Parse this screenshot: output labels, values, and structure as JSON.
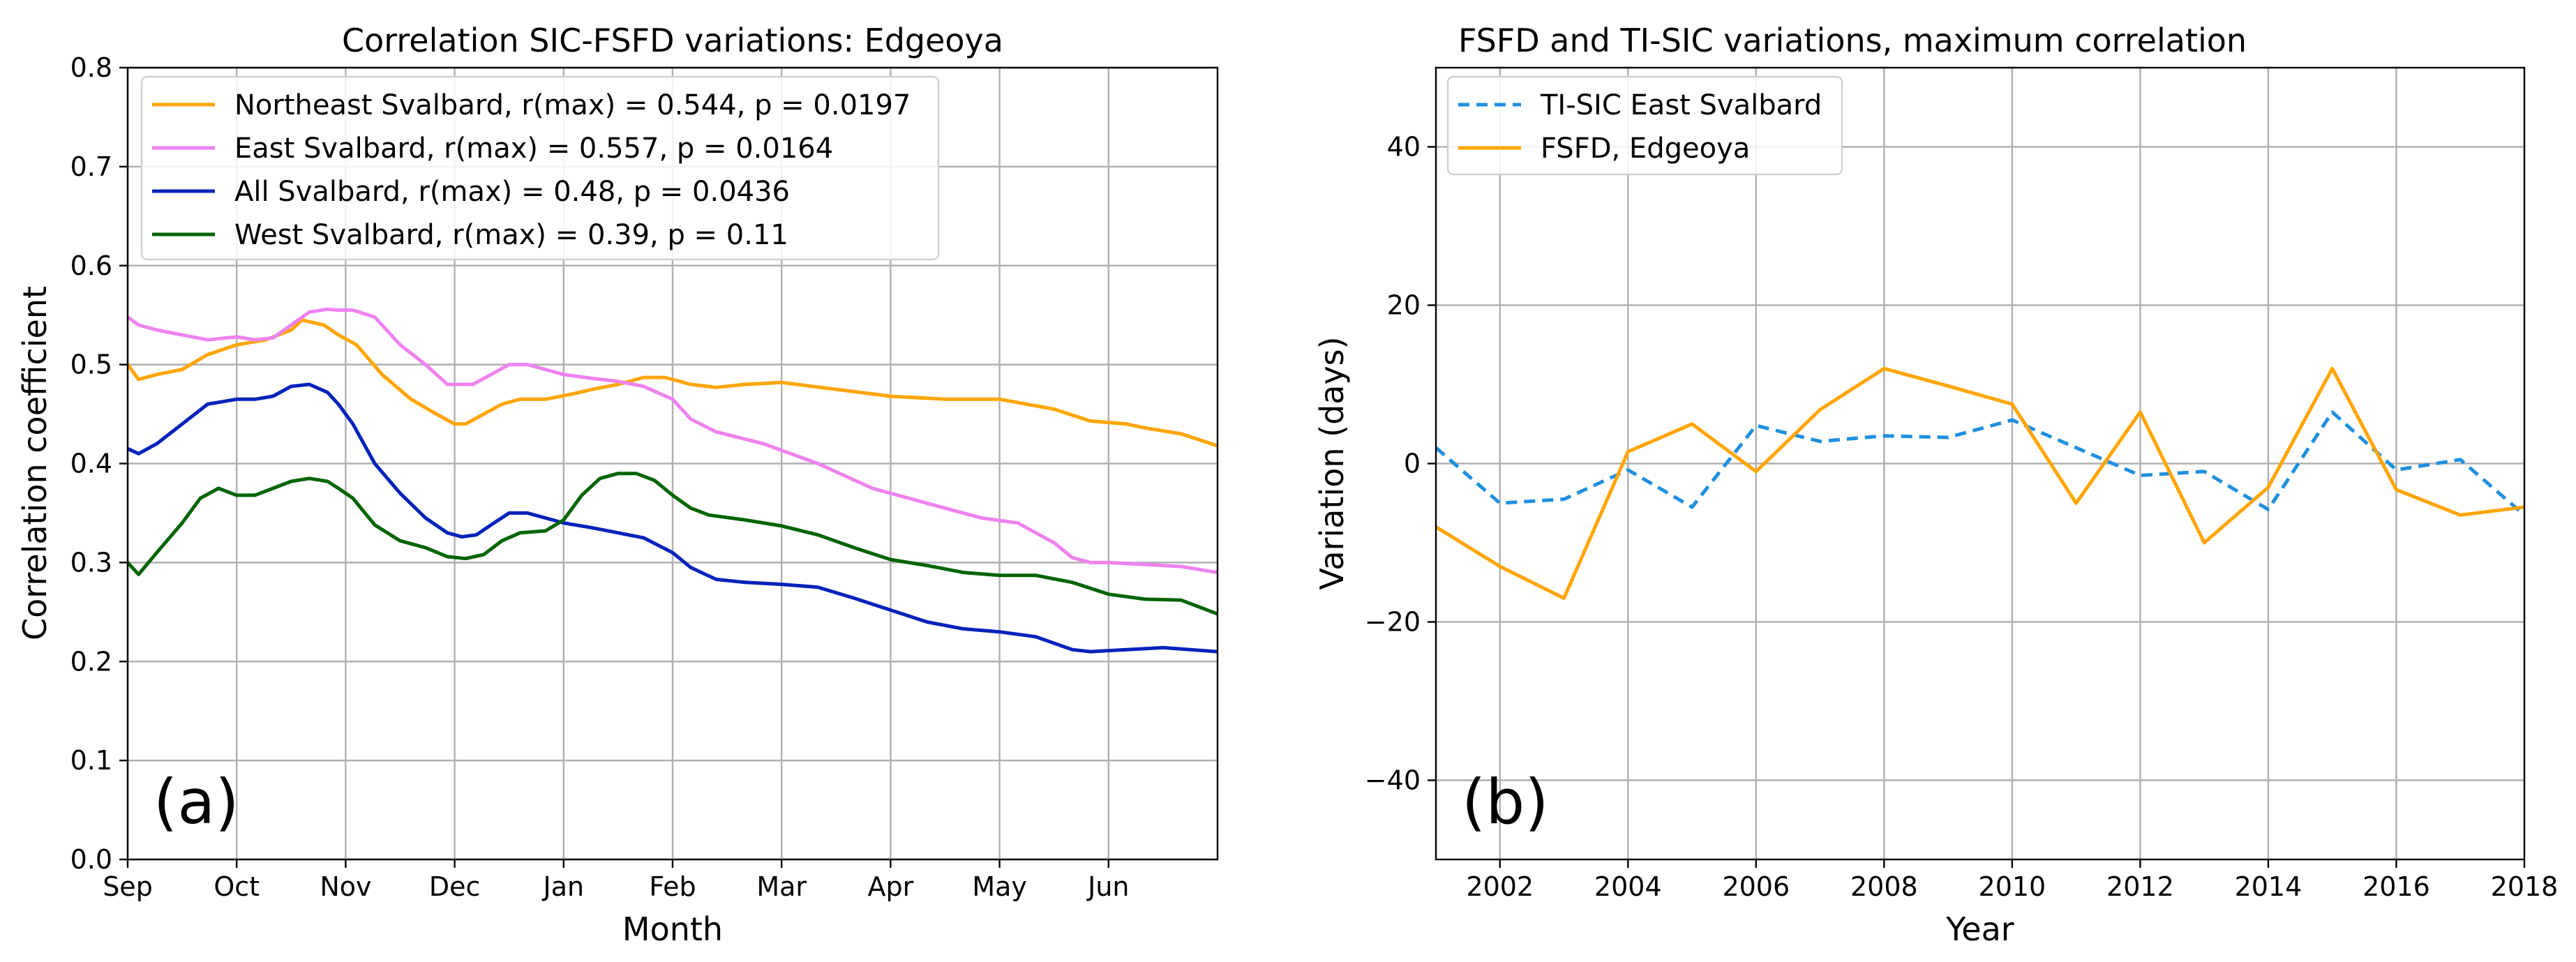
{
  "chart_data": [
    {
      "type": "line",
      "title": "Correlation SIC-FSFD variations: Edgeoya",
      "xlabel": "Month",
      "ylabel": "Correlation coefficient",
      "panel_label": "(a)",
      "ylim": [
        0.0,
        0.8
      ],
      "xlim": [
        0,
        300
      ],
      "yticks": [
        0.0,
        0.1,
        0.2,
        0.3,
        0.4,
        0.5,
        0.6,
        0.7,
        0.8
      ],
      "ytick_labels": [
        "0.0",
        "0.1",
        "0.2",
        "0.3",
        "0.4",
        "0.5",
        "0.6",
        "0.7",
        "0.8"
      ],
      "xticks": [
        0,
        30,
        60,
        90,
        120,
        150,
        180,
        210,
        240,
        270
      ],
      "xtick_labels": [
        "Sep",
        "Oct",
        "Nov",
        "Dec",
        "Jan",
        "Feb",
        "Mar",
        "Apr",
        "May",
        "Jun"
      ],
      "grid": true,
      "legend_position": "top-left",
      "series": [
        {
          "name": "Northeast Svalbard, r(max) = 0.544, p = 0.0197",
          "color": "#FFA500",
          "style": "solid",
          "x": [
            0,
            3,
            8,
            15,
            22,
            30,
            38,
            45,
            48,
            54,
            58,
            63,
            70,
            78,
            85,
            90,
            93,
            98,
            103,
            108,
            115,
            122,
            128,
            135,
            142,
            148,
            155,
            162,
            170,
            180,
            195,
            210,
            225,
            240,
            255,
            265,
            275,
            280,
            290,
            300
          ],
          "values": [
            0.5,
            0.485,
            0.49,
            0.495,
            0.51,
            0.52,
            0.525,
            0.535,
            0.545,
            0.54,
            0.53,
            0.52,
            0.49,
            0.465,
            0.45,
            0.44,
            0.44,
            0.45,
            0.46,
            0.465,
            0.465,
            0.47,
            0.475,
            0.48,
            0.487,
            0.487,
            0.48,
            0.477,
            0.48,
            0.482,
            0.475,
            0.468,
            0.465,
            0.465,
            0.455,
            0.443,
            0.44,
            0.436,
            0.43,
            0.418
          ]
        },
        {
          "name": "East Svalbard, r(max) = 0.557, p = 0.0164",
          "color": "#EE82EE",
          "style": "solid",
          "x": [
            0,
            3,
            8,
            15,
            22,
            30,
            35,
            40,
            45,
            50,
            55,
            58,
            62,
            68,
            75,
            82,
            88,
            95,
            100,
            105,
            110,
            115,
            120,
            128,
            135,
            142,
            150,
            155,
            162,
            175,
            190,
            205,
            220,
            235,
            245,
            250,
            255,
            260,
            265,
            270,
            280,
            290,
            300
          ],
          "values": [
            0.548,
            0.54,
            0.535,
            0.53,
            0.525,
            0.528,
            0.525,
            0.527,
            0.54,
            0.553,
            0.556,
            0.555,
            0.555,
            0.548,
            0.52,
            0.5,
            0.48,
            0.48,
            0.49,
            0.5,
            0.5,
            0.495,
            0.49,
            0.486,
            0.483,
            0.478,
            0.465,
            0.445,
            0.432,
            0.42,
            0.4,
            0.375,
            0.36,
            0.345,
            0.34,
            0.33,
            0.32,
            0.305,
            0.3,
            0.3,
            0.298,
            0.296,
            0.29
          ]
        },
        {
          "name": "All Svalbard, r(max) = 0.48, p = 0.0436",
          "color": "#0022BB",
          "style": "solid",
          "x": [
            0,
            3,
            8,
            15,
            22,
            30,
            35,
            40,
            45,
            50,
            55,
            58,
            62,
            68,
            75,
            82,
            88,
            92,
            96,
            100,
            105,
            110,
            115,
            120,
            128,
            135,
            142,
            150,
            155,
            162,
            170,
            180,
            190,
            200,
            210,
            220,
            230,
            240,
            250,
            260,
            265,
            275,
            285,
            300
          ],
          "values": [
            0.415,
            0.41,
            0.42,
            0.44,
            0.46,
            0.465,
            0.465,
            0.468,
            0.478,
            0.48,
            0.472,
            0.46,
            0.44,
            0.4,
            0.37,
            0.345,
            0.33,
            0.326,
            0.328,
            0.338,
            0.35,
            0.35,
            0.345,
            0.34,
            0.335,
            0.33,
            0.325,
            0.31,
            0.295,
            0.283,
            0.28,
            0.278,
            0.275,
            0.264,
            0.252,
            0.24,
            0.233,
            0.23,
            0.225,
            0.212,
            0.21,
            0.212,
            0.214,
            0.21
          ]
        },
        {
          "name": "West Svalbard, r(max) = 0.39, p = 0.11",
          "color": "#006400",
          "style": "solid",
          "x": [
            0,
            3,
            8,
            15,
            20,
            25,
            30,
            35,
            40,
            45,
            50,
            55,
            58,
            62,
            68,
            75,
            82,
            88,
            93,
            98,
            103,
            108,
            115,
            120,
            125,
            130,
            135,
            140,
            145,
            150,
            155,
            160,
            170,
            180,
            190,
            200,
            210,
            220,
            230,
            240,
            250,
            260,
            270,
            280,
            290,
            300
          ],
          "values": [
            0.3,
            0.288,
            0.31,
            0.34,
            0.365,
            0.375,
            0.368,
            0.368,
            0.375,
            0.382,
            0.385,
            0.382,
            0.375,
            0.365,
            0.338,
            0.322,
            0.315,
            0.306,
            0.304,
            0.308,
            0.322,
            0.33,
            0.332,
            0.343,
            0.368,
            0.385,
            0.39,
            0.39,
            0.383,
            0.368,
            0.355,
            0.348,
            0.343,
            0.337,
            0.328,
            0.315,
            0.303,
            0.297,
            0.29,
            0.287,
            0.287,
            0.28,
            0.268,
            0.263,
            0.262,
            0.248
          ]
        }
      ]
    },
    {
      "type": "line",
      "title": "FSFD and TI-SIC variations, maximum correlation",
      "xlabel": "Year",
      "ylabel": "Variation (days)",
      "panel_label": "(b)",
      "xlim": [
        2001,
        2018
      ],
      "ylim": [
        -50,
        50
      ],
      "xticks": [
        2002,
        2004,
        2006,
        2008,
        2010,
        2012,
        2014,
        2016,
        2018
      ],
      "xtick_labels": [
        "2002",
        "2004",
        "2006",
        "2008",
        "2010",
        "2012",
        "2014",
        "2016",
        "2018"
      ],
      "yticks": [
        -40,
        -20,
        0,
        20,
        40
      ],
      "ytick_labels": [
        "−40",
        "−20",
        "0",
        "20",
        "40"
      ],
      "grid": true,
      "legend_position": "top-left",
      "series": [
        {
          "name": "TI-SIC East Svalbard",
          "color": "#1F8FE0",
          "style": "dashed",
          "x": [
            2001,
            2002,
            2003,
            2004,
            2005,
            2006,
            2007,
            2008,
            2009,
            2010,
            2011,
            2012,
            2013,
            2014,
            2015,
            2016,
            2017,
            2018
          ],
          "values": [
            2.0,
            -5.0,
            -4.5,
            -0.8,
            -5.5,
            4.8,
            2.8,
            3.5,
            3.3,
            5.5,
            2.0,
            -1.5,
            -1.0,
            -5.8,
            6.5,
            -0.8,
            0.5,
            -6.5
          ]
        },
        {
          "name": "FSFD, Edgeoya",
          "color": "#FFA500",
          "style": "solid",
          "x": [
            2001,
            2002,
            2003,
            2004,
            2005,
            2006,
            2007,
            2008,
            2009,
            2010,
            2011,
            2012,
            2013,
            2014,
            2015,
            2016,
            2017,
            2018
          ],
          "values": [
            -8.0,
            -13.0,
            -17.0,
            1.5,
            5.0,
            -1.0,
            6.8,
            12.0,
            9.8,
            7.5,
            -5.0,
            6.5,
            -10.0,
            -3.0,
            12.0,
            -3.3,
            -6.5,
            -5.5
          ]
        }
      ]
    }
  ]
}
